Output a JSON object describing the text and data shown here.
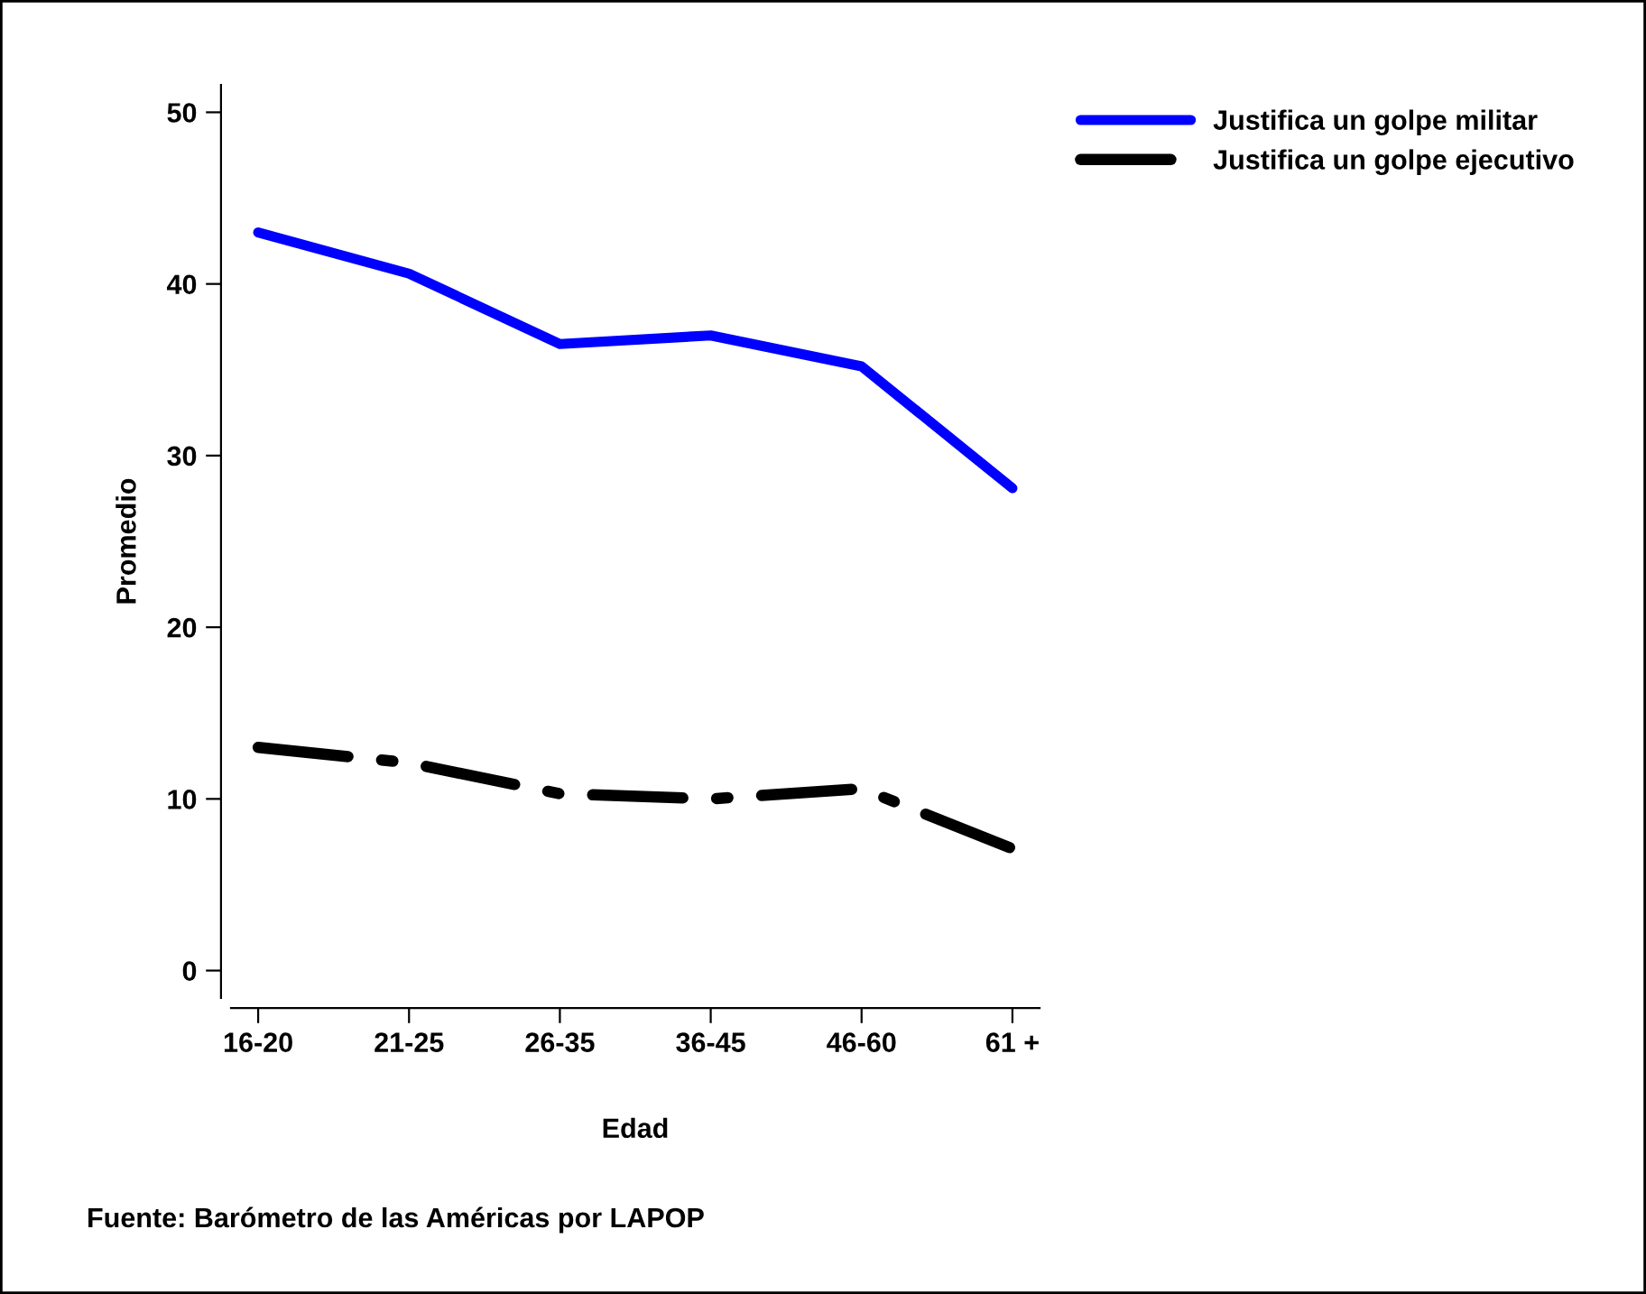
{
  "chart_data": {
    "type": "line",
    "xlabel": "Edad",
    "ylabel": "Promedio",
    "categories": [
      "16-20",
      "21-25",
      "26-35",
      "36-45",
      "46-60",
      "61 +"
    ],
    "series": [
      {
        "name": "Justifica un golpe militar",
        "color": "#0000ff",
        "line_style": "solid",
        "values": [
          43.0,
          40.6,
          36.5,
          37.0,
          35.2,
          28.1
        ]
      },
      {
        "name": "Justifica un golpe ejecutivo",
        "color": "#000000",
        "line_style": "dashdot",
        "values": [
          13.0,
          12.1,
          10.3,
          10.0,
          10.6,
          7.1
        ]
      }
    ],
    "ylim": [
      -1.6,
      51.6
    ],
    "yticks": [
      0,
      10,
      20,
      30,
      40,
      50
    ],
    "grid": false,
    "legend": "top right",
    "marker": "none",
    "annotations": [
      "Fuente: Barómetro de las Américas por LAPOP"
    ]
  }
}
